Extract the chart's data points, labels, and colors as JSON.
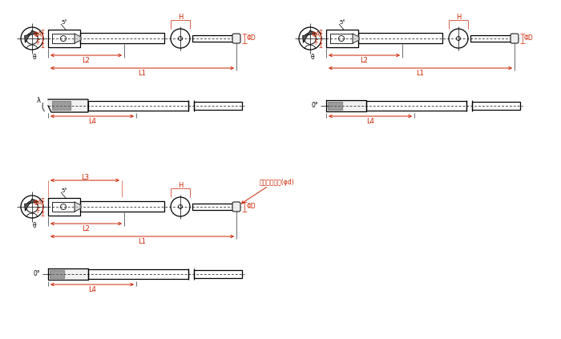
{
  "bg": "#ffffff",
  "lc": "#000000",
  "rc": "#cc2200",
  "fig_w": 7.0,
  "fig_h": 4.23,
  "dpi": 100
}
